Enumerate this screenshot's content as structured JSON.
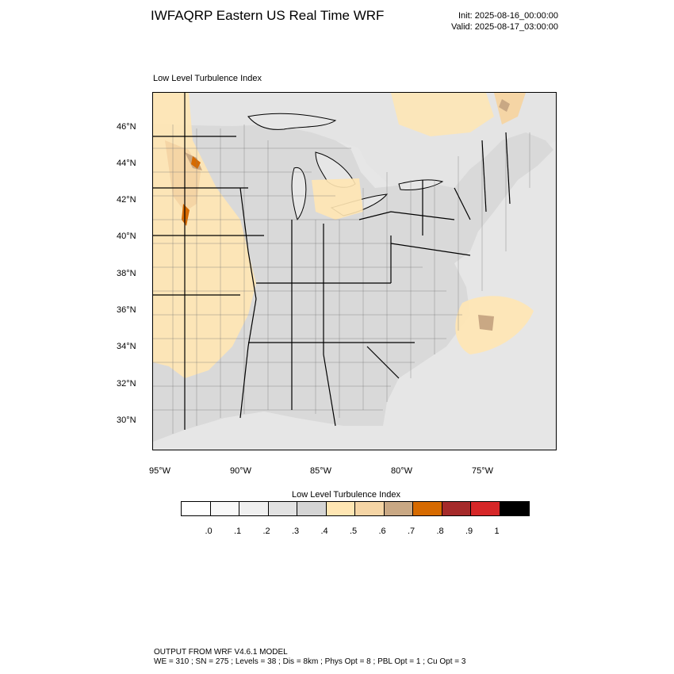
{
  "title": "IWFAQRP Eastern US Real Time WRF",
  "init_time": "Init: 2025-08-16_00:00:00",
  "valid_time": "Valid: 2025-08-17_03:00:00",
  "panel_title": "Low Level Turbulence Index",
  "map": {
    "latitude_labels": [
      "46°N",
      "44°N",
      "42°N",
      "40°N",
      "38°N",
      "36°N",
      "34°N",
      "32°N",
      "30°N"
    ],
    "longitude_labels": [
      "95°W",
      "90°W",
      "85°W",
      "80°W",
      "75°W"
    ],
    "colors": {
      "land_background": "#d9d9d9",
      "ocean_background": "#e6e6e6",
      "low_turbulence": "#f2f2f2",
      "moderate_turbulence": "#ffe6b3",
      "elevated_turbulence": "#f5d5a5",
      "high_turbulence": "#c9a884",
      "very_high_turbulence": "#d66a00",
      "boundaries": "#000000"
    }
  },
  "colorbar": {
    "title": "Low Level Turbulence Index",
    "colors": [
      "#ffffff",
      "#f9f9f9",
      "#f0f0f0",
      "#e2e2e2",
      "#d4d4d4",
      "#ffe6b3",
      "#f5d5a5",
      "#c9a884",
      "#d66a00",
      "#a52a2a",
      "#d62728",
      "#000000"
    ],
    "tick_labels": [
      ".0",
      ".1",
      ".2",
      ".3",
      ".4",
      ".5",
      ".6",
      ".7",
      ".8",
      ".9",
      "1"
    ]
  },
  "footer": {
    "line1": "OUTPUT FROM WRF V4.6.1 MODEL",
    "line2": "WE = 310 ; SN = 275 ; Levels = 38 ; Dis = 8km ; Phys Opt = 8 ; PBL Opt = 1 ; Cu Opt = 3"
  }
}
